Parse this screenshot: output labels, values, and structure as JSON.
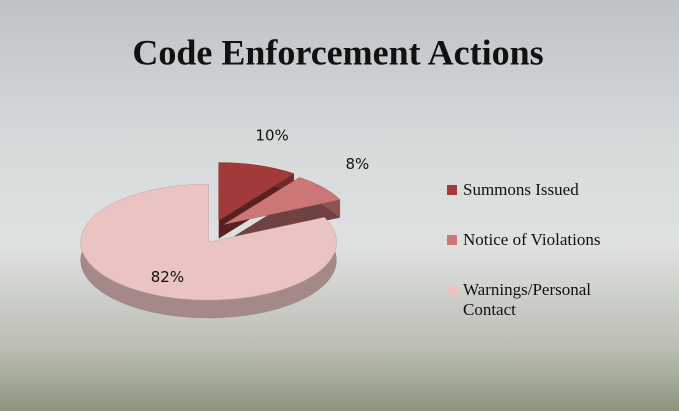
{
  "chart_data": {
    "type": "pie",
    "title": "Code Enforcement Actions",
    "categories": [
      "Summons Issued",
      "Notice of Violations",
      "Warnings/Personal Contact"
    ],
    "values": [
      10,
      8,
      82
    ],
    "value_labels": [
      "10%",
      "8%",
      "82%"
    ],
    "colors": [
      "#a23a3a",
      "#cc7777",
      "#ebc3c3"
    ]
  }
}
